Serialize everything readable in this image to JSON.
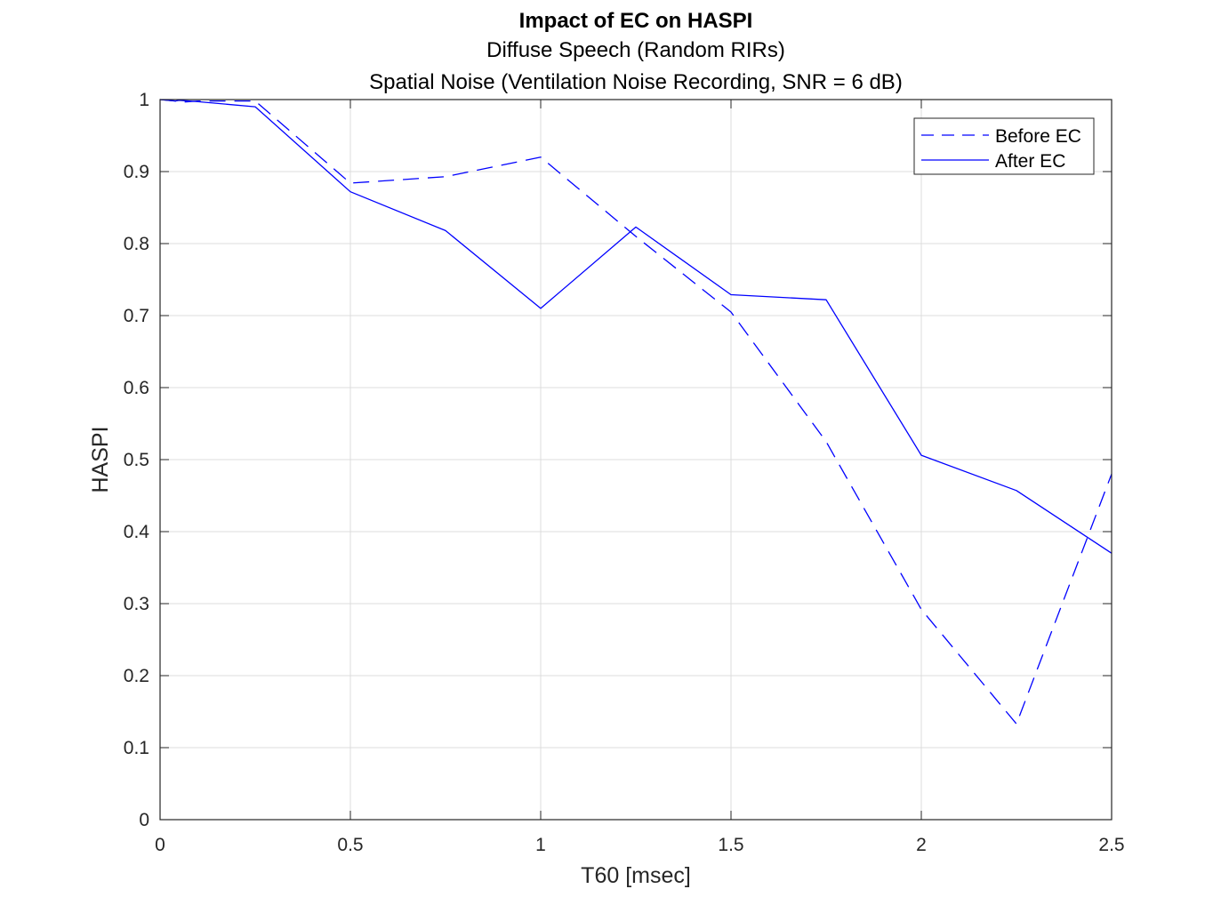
{
  "chart_data": {
    "type": "line",
    "title": "Impact of EC on HASPI",
    "subtitles": [
      "Diffuse Speech (Random RIRs)",
      "Spatial Noise (Ventilation Noise Recording, SNR = 6 dB)"
    ],
    "xlabel": "T60 [msec]",
    "ylabel": "HASPI",
    "xlim": [
      0,
      2.5
    ],
    "ylim": [
      0,
      1
    ],
    "xticks": [
      0,
      0.5,
      1,
      1.5,
      2,
      2.5
    ],
    "xtick_labels": [
      "0",
      "0.5",
      "1",
      "1.5",
      "2",
      "2.5"
    ],
    "yticks": [
      0,
      0.1,
      0.2,
      0.3,
      0.4,
      0.5,
      0.6,
      0.7,
      0.8,
      0.9,
      1
    ],
    "ytick_labels": [
      "0",
      "0.1",
      "0.2",
      "0.3",
      "0.4",
      "0.5",
      "0.6",
      "0.7",
      "0.8",
      "0.9",
      "1"
    ],
    "grid": true,
    "legend_position": "top-right",
    "series": [
      {
        "name": "Before EC",
        "style": "dashed",
        "color": "#0000ff",
        "x": [
          0,
          0.04,
          0.05,
          0.1,
          0.25,
          0.5,
          0.75,
          1,
          1.25,
          1.5,
          1.75,
          2,
          2.25,
          2.5
        ],
        "y": [
          1.0,
          0.998,
          0.996,
          0.998,
          0.998,
          0.884,
          0.893,
          0.92,
          0.81,
          0.705,
          0.525,
          0.292,
          0.133,
          0.48
        ]
      },
      {
        "name": "After EC",
        "style": "solid",
        "color": "#0000ff",
        "x": [
          0,
          0.04,
          0.05,
          0.1,
          0.25,
          0.5,
          0.75,
          1,
          1.25,
          1.5,
          1.75,
          2,
          2.25,
          2.5
        ],
        "y": [
          1.0,
          0.998,
          0.999,
          0.997,
          0.99,
          0.872,
          0.818,
          0.71,
          0.823,
          0.729,
          0.722,
          0.506,
          0.457,
          0.37
        ]
      }
    ]
  }
}
